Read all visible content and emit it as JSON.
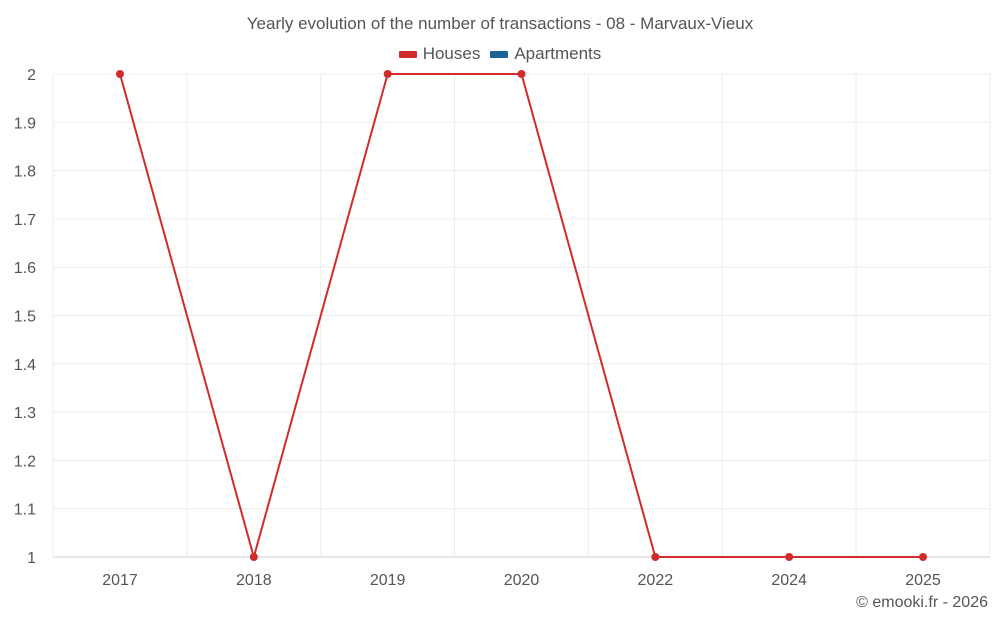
{
  "chart_data": {
    "type": "line",
    "title": "Yearly evolution of the number of transactions - 08 - Marvaux-Vieux",
    "categories": [
      "2017",
      "2018",
      "2019",
      "2020",
      "2022",
      "2024",
      "2025"
    ],
    "series": [
      {
        "name": "Houses",
        "color": "#d22b2b",
        "values": [
          2,
          1,
          2,
          2,
          1,
          1,
          1
        ]
      },
      {
        "name": "Apartments",
        "color": "#1a6496",
        "values": [
          null,
          null,
          null,
          null,
          null,
          null,
          null
        ]
      }
    ],
    "y_ticks": [
      "1",
      "1.1",
      "1.2",
      "1.3",
      "1.4",
      "1.5",
      "1.6",
      "1.7",
      "1.8",
      "1.9",
      "2"
    ],
    "ylim": [
      1,
      2
    ],
    "xlabel": "",
    "ylabel": "",
    "grid": true,
    "legend_position": "top-center"
  },
  "credit": "© emooki.fr - 2026"
}
